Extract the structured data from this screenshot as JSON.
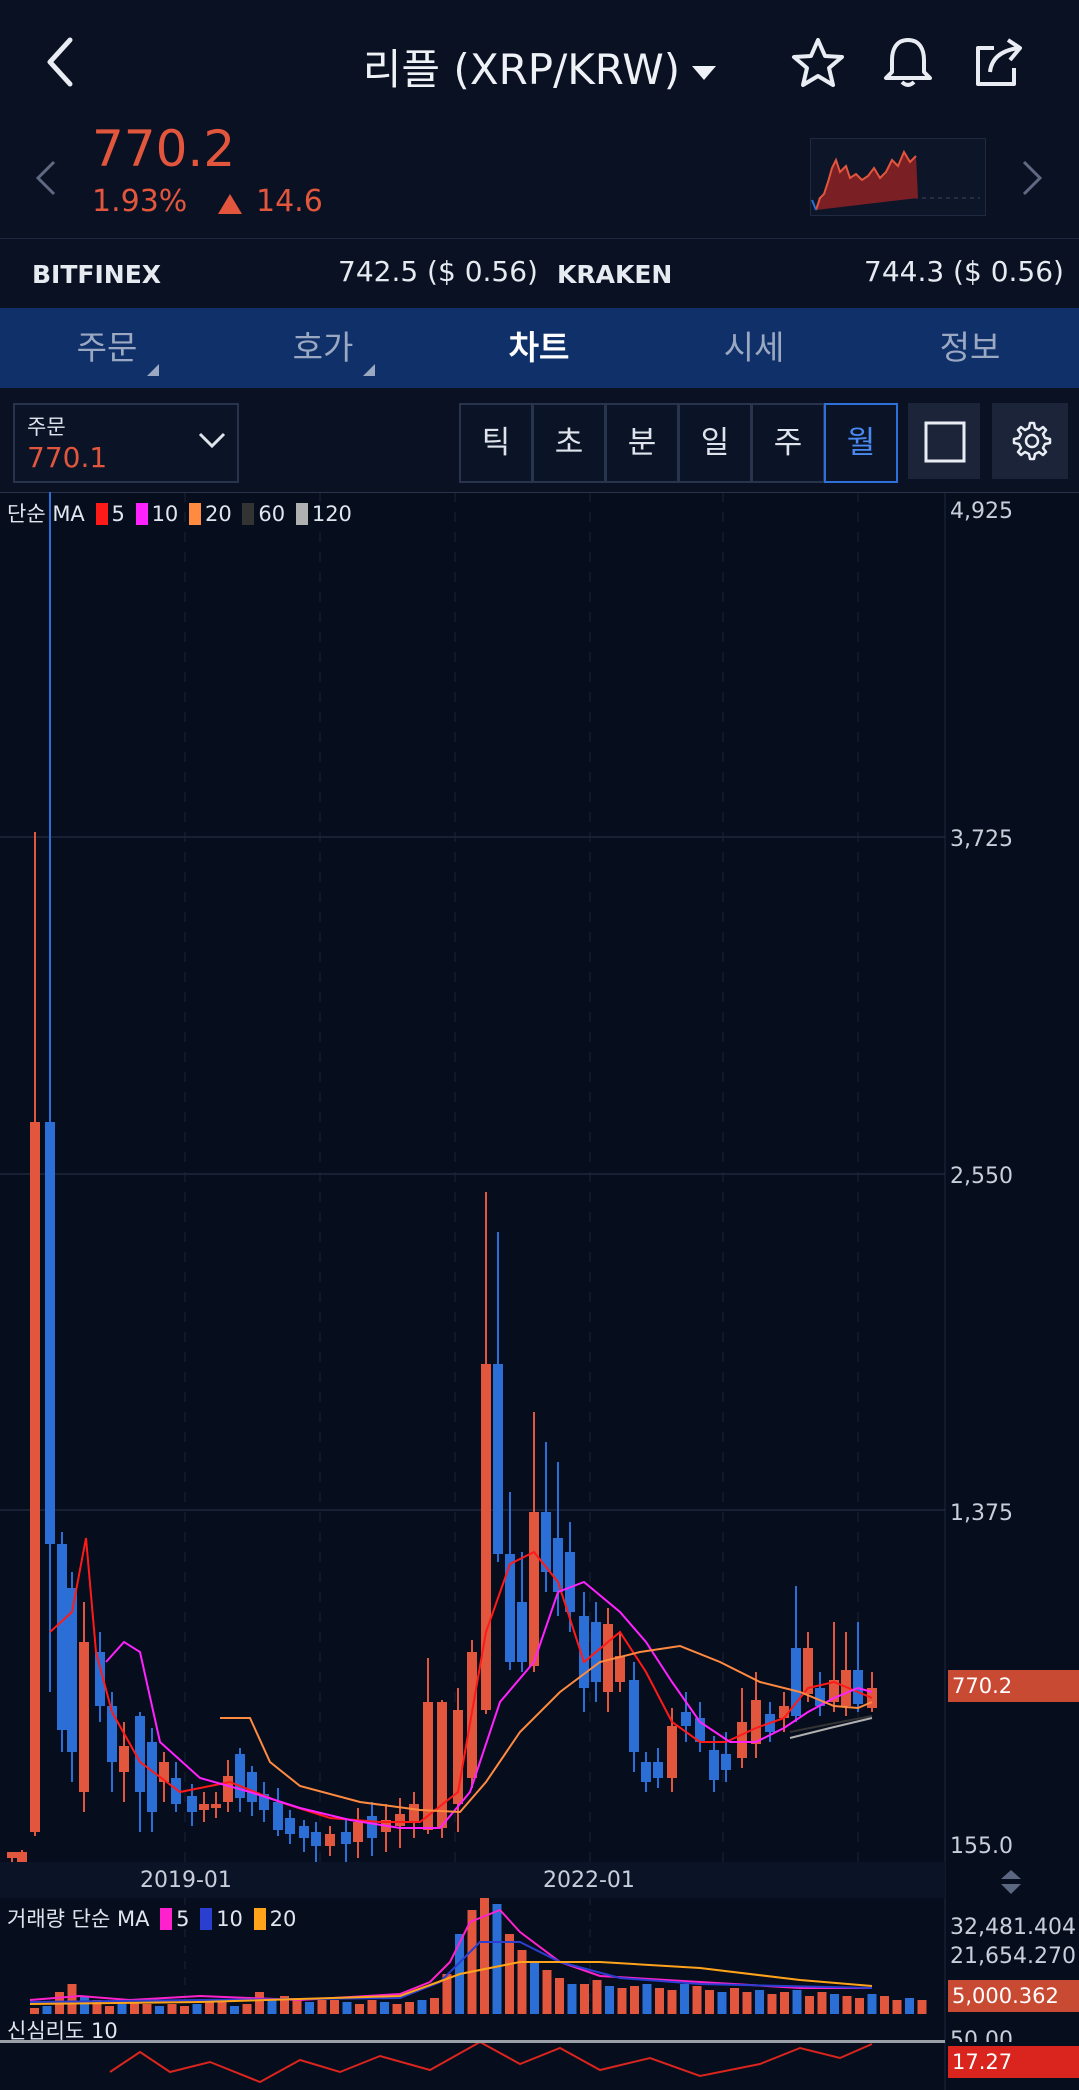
{
  "header": {
    "title": "리플 (XRP/KRW)",
    "price": "770.2",
    "change_pct": "1.93%",
    "change_abs": "14.6"
  },
  "exchanges": [
    {
      "name": "BITFINEX",
      "value": "742.5 ($ 0.56)"
    },
    {
      "name": "KRAKEN",
      "value": "744.3 ($ 0.56)"
    }
  ],
  "tabs": [
    "주문",
    "호가",
    "차트",
    "시세",
    "정보"
  ],
  "active_tab": "차트",
  "order": {
    "label": "주문",
    "value": "770.1"
  },
  "periods": [
    "틱",
    "초",
    "분",
    "일",
    "주",
    "월"
  ],
  "active_period": "월",
  "colors": {
    "up": "#e2563d",
    "down": "#2b6fd6",
    "accent": "#2f6fd8"
  },
  "main_legend": {
    "prefix": "단순 MA",
    "items": [
      {
        "label": "5",
        "color": "#ff1a1a"
      },
      {
        "label": "10",
        "color": "#ff22ff"
      },
      {
        "label": "20",
        "color": "#ff8a40"
      },
      {
        "label": "60",
        "color": "#333333"
      },
      {
        "label": "120",
        "color": "#b0b0b0"
      }
    ]
  },
  "price_axis": [
    "4,925",
    "3,725",
    "2,550",
    "1,375",
    "155.0"
  ],
  "current_price_label": "770.2",
  "time_axis": [
    "2019-01",
    "2022-01"
  ],
  "volume_legend": {
    "prefix": "거래량 단순 MA",
    "items": [
      {
        "label": "5",
        "color": "#ff22cc"
      },
      {
        "label": "10",
        "color": "#2a3fcf"
      },
      {
        "label": "20",
        "color": "#ffa31a"
      }
    ]
  },
  "volume_axis": [
    "32,481.404",
    "21,654.270"
  ],
  "current_volume_label": "5,000.362",
  "psy_legend": "신심리도 10",
  "psy_axis": "50.00",
  "current_psy_label": "17.27"
}
